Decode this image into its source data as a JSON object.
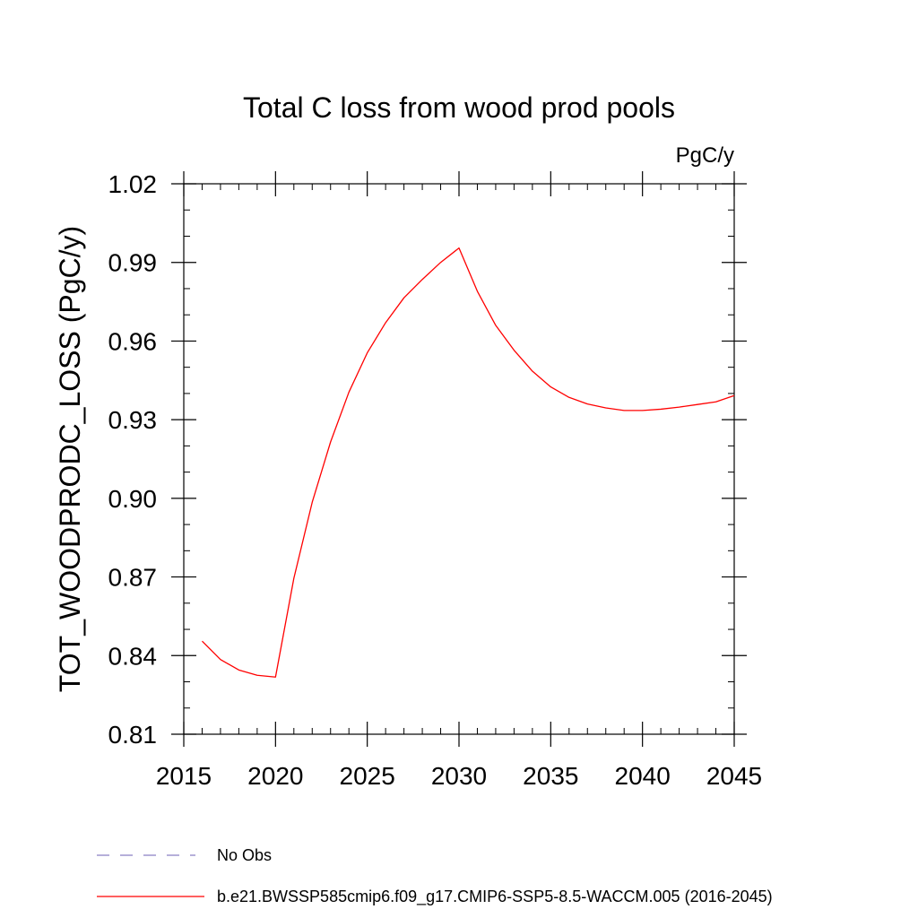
{
  "chart_data": {
    "type": "line",
    "title": "Total C loss from wood prod pools",
    "units_label": "PgC/y",
    "ylabel": "TOT_WOODPRODC_LOSS  (PgC/y)",
    "xlabel": "",
    "xlim": [
      2015,
      2045
    ],
    "ylim": [
      0.81,
      1.02
    ],
    "x_ticks": [
      2015,
      2020,
      2025,
      2030,
      2035,
      2040,
      2045
    ],
    "x_tick_labels": [
      "2015",
      "2020",
      "2025",
      "2030",
      "2035",
      "2040",
      "2045"
    ],
    "y_ticks": [
      0.81,
      0.84,
      0.87,
      0.9,
      0.93,
      0.96,
      0.99,
      1.02
    ],
    "y_tick_labels": [
      "0.81",
      "0.84",
      "0.87",
      "0.90",
      "0.93",
      "0.96",
      "0.99",
      "1.02"
    ],
    "grid": false,
    "legend_position": "bottom-left",
    "legend": [
      {
        "label": "No Obs",
        "color": "#8a7fc4",
        "dash": "dashed"
      },
      {
        "label": "b.e21.BWSSP585cmip6.f09_g17.CMIP6-SSP5-8.5-WACCM.005 (2016-2045)",
        "color": "#ff0000",
        "dash": "solid"
      }
    ],
    "series": [
      {
        "name": "b.e21.BWSSP585cmip6.f09_g17.CMIP6-SSP5-8.5-WACCM.005 (2016-2045)",
        "color": "#ff0000",
        "x": [
          2016,
          2017,
          2018,
          2019,
          2020,
          2021,
          2022,
          2023,
          2024,
          2025,
          2026,
          2027,
          2028,
          2029,
          2030,
          2031,
          2032,
          2033,
          2034,
          2035,
          2036,
          2037,
          2038,
          2039,
          2040,
          2041,
          2042,
          2043,
          2044,
          2045
        ],
        "values": [
          0.8455,
          0.8385,
          0.8345,
          0.8325,
          0.8318,
          0.8695,
          0.8985,
          0.9215,
          0.9405,
          0.9555,
          0.967,
          0.9765,
          0.9835,
          0.99,
          0.9955,
          0.979,
          0.966,
          0.9565,
          0.9485,
          0.9425,
          0.9385,
          0.936,
          0.9345,
          0.9335,
          0.9335,
          0.934,
          0.9348,
          0.9358,
          0.9368,
          0.9392
        ]
      }
    ]
  }
}
